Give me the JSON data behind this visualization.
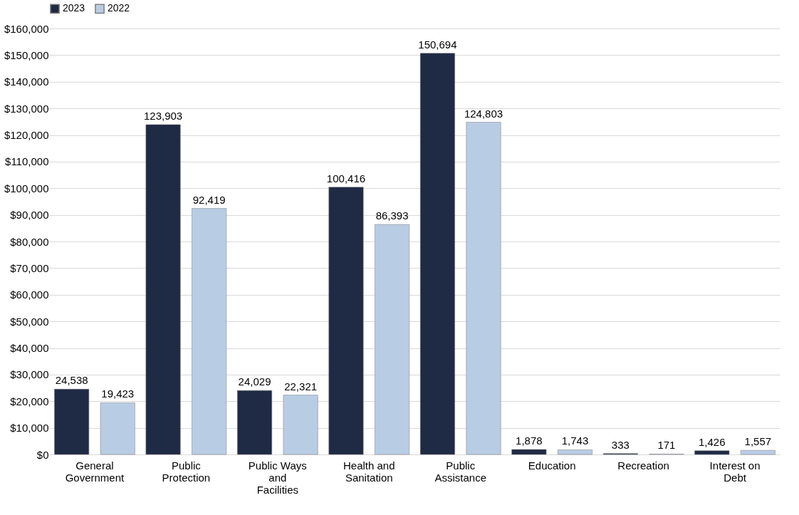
{
  "chart_data": {
    "type": "bar",
    "categories": [
      "General Government",
      "Public Protection",
      "Public Ways and Facilities",
      "Health and Sanitation",
      "Public Assistance",
      "Education",
      "Recreation",
      "Interest on Debt"
    ],
    "series": [
      {
        "name": "2023",
        "color": "#1f2a44",
        "values": [
          24538,
          123903,
          24029,
          100416,
          150694,
          1878,
          333,
          1426
        ],
        "value_labels": [
          "24,538",
          "123,903",
          "24,029",
          "100,416",
          "150,694",
          "1,878",
          "333",
          "1,426"
        ]
      },
      {
        "name": "2022",
        "color": "#b8cce4",
        "values": [
          19423,
          92419,
          22321,
          86393,
          124803,
          1743,
          171,
          1557
        ],
        "value_labels": [
          "19,423",
          "92,419",
          "22,321",
          "86,393",
          "124,803",
          "1,743",
          "171",
          "1,557"
        ]
      }
    ],
    "ylim": [
      0,
      160000
    ],
    "yticks": [
      {
        "value": 0,
        "label": "$0"
      },
      {
        "value": 10000,
        "label": "$10,000"
      },
      {
        "value": 20000,
        "label": "$20,000"
      },
      {
        "value": 30000,
        "label": "$30,000"
      },
      {
        "value": 40000,
        "label": "$40,000"
      },
      {
        "value": 50000,
        "label": "$50,000"
      },
      {
        "value": 60000,
        "label": "$60,000"
      },
      {
        "value": 70000,
        "label": "$70,000"
      },
      {
        "value": 80000,
        "label": "$80,000"
      },
      {
        "value": 90000,
        "label": "$90,000"
      },
      {
        "value": 100000,
        "label": "$100,000"
      },
      {
        "value": 110000,
        "label": "$110,000"
      },
      {
        "value": 120000,
        "label": "$120,000"
      },
      {
        "value": 130000,
        "label": "$130,000"
      },
      {
        "value": 140000,
        "label": "$140,000"
      },
      {
        "value": 150000,
        "label": "$150,000"
      },
      {
        "value": 160000,
        "label": "$160,000"
      }
    ],
    "grid": "y",
    "legend": "top"
  }
}
